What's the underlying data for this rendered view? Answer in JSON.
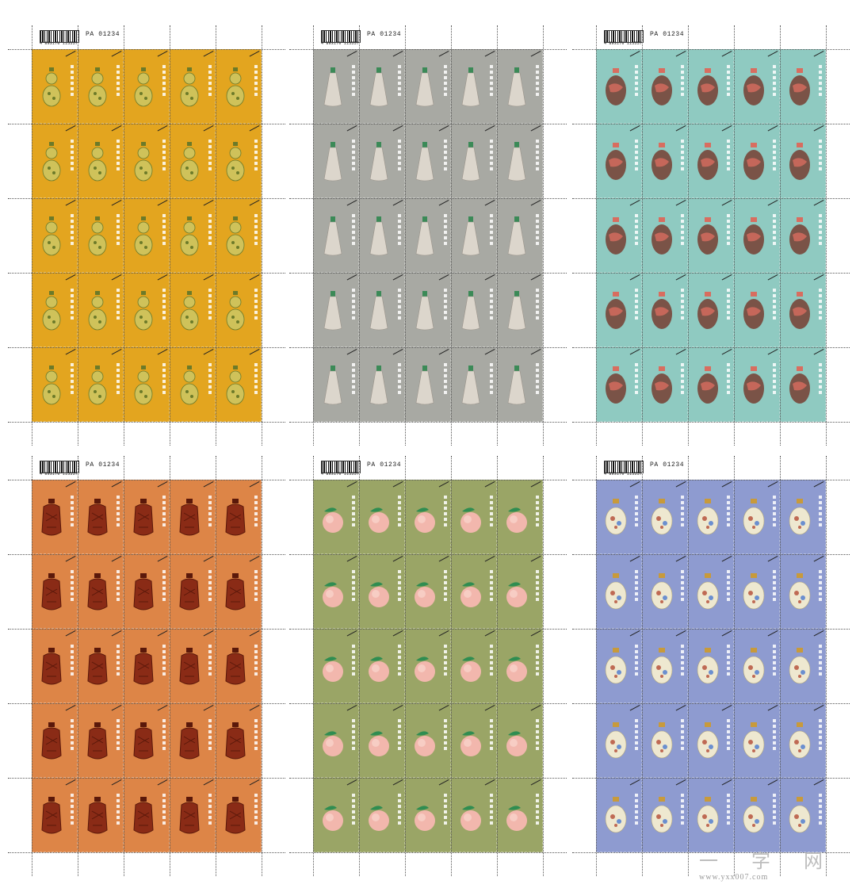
{
  "sheets": [
    {
      "barcode": "4 893170 115557",
      "sheet_number": "PA 01234",
      "background": "#e3a51f",
      "object_color": "#cfc25a",
      "object_accent": "#6c7a29",
      "object_shape": "gourd"
    },
    {
      "barcode": "4 893170 115557",
      "sheet_number": "PA 01234",
      "background": "#a8a9a3",
      "object_color": "#dcd6cc",
      "object_accent": "#3b8a57",
      "object_shape": "bottle"
    },
    {
      "barcode": "4 893170 115557",
      "sheet_number": "PA 01234",
      "background": "#8fcac1",
      "object_color": "#7a5347",
      "object_accent": "#d86d5f",
      "object_shape": "vase"
    },
    {
      "barcode": "4 893170 115557",
      "sheet_number": "PA 01234",
      "background": "#dd8547",
      "object_color": "#8a2b16",
      "object_accent": "#5a180a",
      "object_shape": "carved"
    },
    {
      "barcode": "4 893170 115557",
      "sheet_number": "PA 01234",
      "background": "#9aa566",
      "object_color": "#f2b7ad",
      "object_accent": "#2f8d51",
      "object_shape": "peach"
    },
    {
      "barcode": "4 893170 115557",
      "sheet_number": "PA 01234",
      "background": "#8e9bd0",
      "object_color": "#eee8d0",
      "object_accent": "#bf6a54",
      "object_shape": "enamel"
    }
  ],
  "watermark": {
    "cn": "一 字 网",
    "url": "www.yxx007.com"
  }
}
